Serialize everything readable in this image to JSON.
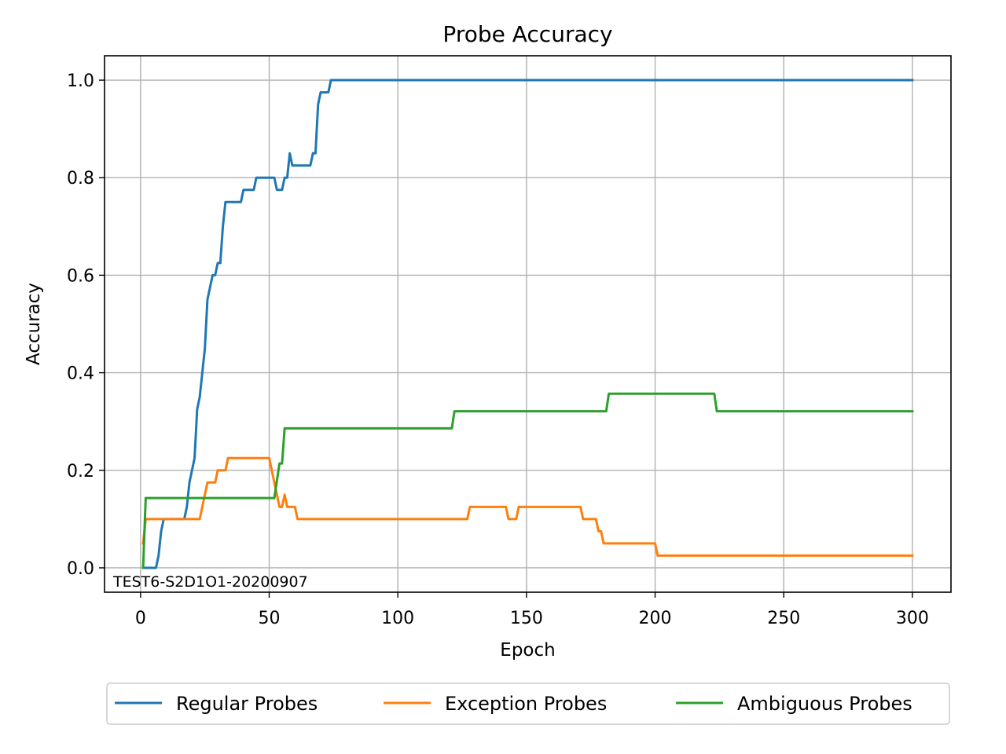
{
  "chart_data": {
    "type": "line",
    "title": "Probe Accuracy",
    "xlabel": "Epoch",
    "ylabel": "Accuracy",
    "xlim": [
      -14,
      315
    ],
    "ylim": [
      -0.05,
      1.05
    ],
    "xticks": [
      0,
      50,
      100,
      150,
      200,
      250,
      300
    ],
    "yticks": [
      0.0,
      0.2,
      0.4,
      0.6,
      0.8,
      1.0
    ],
    "xtick_labels": [
      "0",
      "50",
      "100",
      "150",
      "200",
      "250",
      "300"
    ],
    "ytick_labels": [
      "0.0",
      "0.2",
      "0.4",
      "0.6",
      "0.8",
      "1.0"
    ],
    "grid": true,
    "legend_position": "bottom-center-outside",
    "annotation": "TEST6-S2D1O1-20200907",
    "series": [
      {
        "name": "Regular Probes",
        "color": "#1f77b4",
        "points": [
          [
            1,
            0.0
          ],
          [
            5,
            0.0
          ],
          [
            6,
            0.0
          ],
          [
            7,
            0.025
          ],
          [
            8,
            0.075
          ],
          [
            9,
            0.1
          ],
          [
            17,
            0.1
          ],
          [
            18,
            0.125
          ],
          [
            19,
            0.175
          ],
          [
            20,
            0.2
          ],
          [
            21,
            0.225
          ],
          [
            22,
            0.325
          ],
          [
            23,
            0.35
          ],
          [
            24,
            0.4
          ],
          [
            25,
            0.45
          ],
          [
            26,
            0.55
          ],
          [
            27,
            0.575
          ],
          [
            28,
            0.6
          ],
          [
            29,
            0.6
          ],
          [
            30,
            0.625
          ],
          [
            31,
            0.625
          ],
          [
            32,
            0.7
          ],
          [
            33,
            0.75
          ],
          [
            39,
            0.75
          ],
          [
            40,
            0.775
          ],
          [
            44,
            0.775
          ],
          [
            45,
            0.8
          ],
          [
            52,
            0.8
          ],
          [
            53,
            0.775
          ],
          [
            55,
            0.775
          ],
          [
            56,
            0.8
          ],
          [
            57,
            0.8
          ],
          [
            58,
            0.85
          ],
          [
            59,
            0.825
          ],
          [
            66,
            0.825
          ],
          [
            67,
            0.85
          ],
          [
            68,
            0.85
          ],
          [
            69,
            0.95
          ],
          [
            70,
            0.975
          ],
          [
            73,
            0.975
          ],
          [
            74,
            1.0
          ],
          [
            300,
            1.0
          ]
        ]
      },
      {
        "name": "Exception Probes",
        "color": "#ff7f0e",
        "points": [
          [
            1,
            0.05
          ],
          [
            2,
            0.1
          ],
          [
            23,
            0.1
          ],
          [
            24,
            0.125
          ],
          [
            25,
            0.15
          ],
          [
            26,
            0.175
          ],
          [
            29,
            0.175
          ],
          [
            30,
            0.2
          ],
          [
            33,
            0.2
          ],
          [
            34,
            0.225
          ],
          [
            50,
            0.225
          ],
          [
            51,
            0.2
          ],
          [
            52,
            0.175
          ],
          [
            53,
            0.15
          ],
          [
            54,
            0.125
          ],
          [
            55,
            0.125
          ],
          [
            56,
            0.15
          ],
          [
            57,
            0.125
          ],
          [
            60,
            0.125
          ],
          [
            61,
            0.1
          ],
          [
            127,
            0.1
          ],
          [
            128,
            0.125
          ],
          [
            142,
            0.125
          ],
          [
            143,
            0.1
          ],
          [
            146,
            0.1
          ],
          [
            147,
            0.125
          ],
          [
            171,
            0.125
          ],
          [
            172,
            0.1
          ],
          [
            177,
            0.1
          ],
          [
            178,
            0.075
          ],
          [
            179,
            0.075
          ],
          [
            180,
            0.05
          ],
          [
            200,
            0.05
          ],
          [
            201,
            0.025
          ],
          [
            300,
            0.025
          ]
        ]
      },
      {
        "name": "Ambiguous Probes",
        "color": "#2ca02c",
        "points": [
          [
            1,
            0.0
          ],
          [
            2,
            0.143
          ],
          [
            52,
            0.143
          ],
          [
            53,
            0.179
          ],
          [
            54,
            0.214
          ],
          [
            55,
            0.214
          ],
          [
            56,
            0.286
          ],
          [
            121,
            0.286
          ],
          [
            122,
            0.321
          ],
          [
            181,
            0.321
          ],
          [
            182,
            0.357
          ],
          [
            223,
            0.357
          ],
          [
            224,
            0.321
          ],
          [
            300,
            0.321
          ]
        ]
      }
    ]
  }
}
